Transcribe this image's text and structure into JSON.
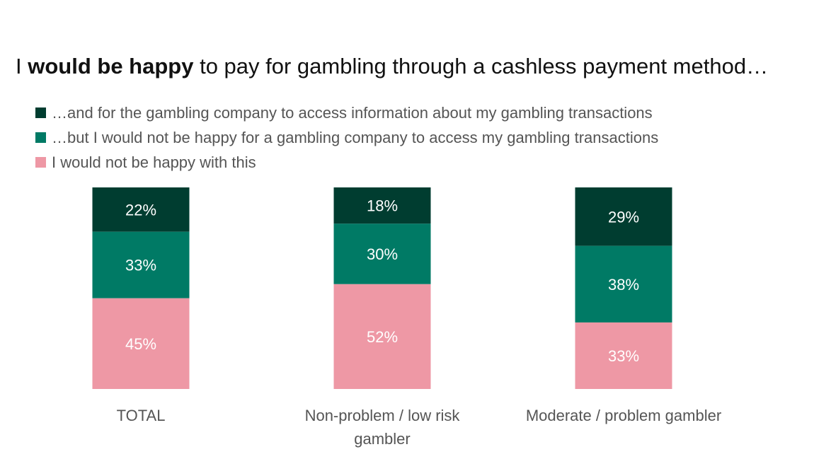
{
  "title": {
    "prefix": "I ",
    "bold": "would be happy",
    "suffix": " to pay for gambling through a cashless payment method…"
  },
  "legend": [
    {
      "label": "…and for the gambling company to access information about my gambling transactions",
      "color": "#003d30"
    },
    {
      "label": "…but I would not be happy for a gambling company to access my gambling transactions",
      "color": "#007a65"
    },
    {
      "label": "I would not be happy with this",
      "color": "#ee98a5"
    }
  ],
  "chart_data": {
    "type": "bar",
    "stacked": true,
    "categories": [
      "TOTAL",
      "Non-problem / low risk gambler",
      "Moderate / problem gambler"
    ],
    "series": [
      {
        "name": "…and for the gambling company to access information about my gambling transactions",
        "values": [
          22,
          18,
          29
        ],
        "color": "#003d30"
      },
      {
        "name": "…but I would not be happy for a gambling company to access my gambling transactions",
        "values": [
          33,
          30,
          38
        ],
        "color": "#007a65"
      },
      {
        "name": "I would not be happy with this",
        "values": [
          45,
          52,
          33
        ],
        "color": "#ee98a5"
      }
    ],
    "data_labels": [
      [
        "22%",
        "18%",
        "29%"
      ],
      [
        "33%",
        "30%",
        "38%"
      ],
      [
        "45%",
        "52%",
        "33%"
      ]
    ],
    "category_label_lines": [
      [
        "TOTAL"
      ],
      [
        "Non-problem / low risk",
        "gambler"
      ],
      [
        "Moderate / problem gambler"
      ]
    ],
    "unit": "%",
    "ylim": [
      0,
      100
    ],
    "grid": false
  }
}
